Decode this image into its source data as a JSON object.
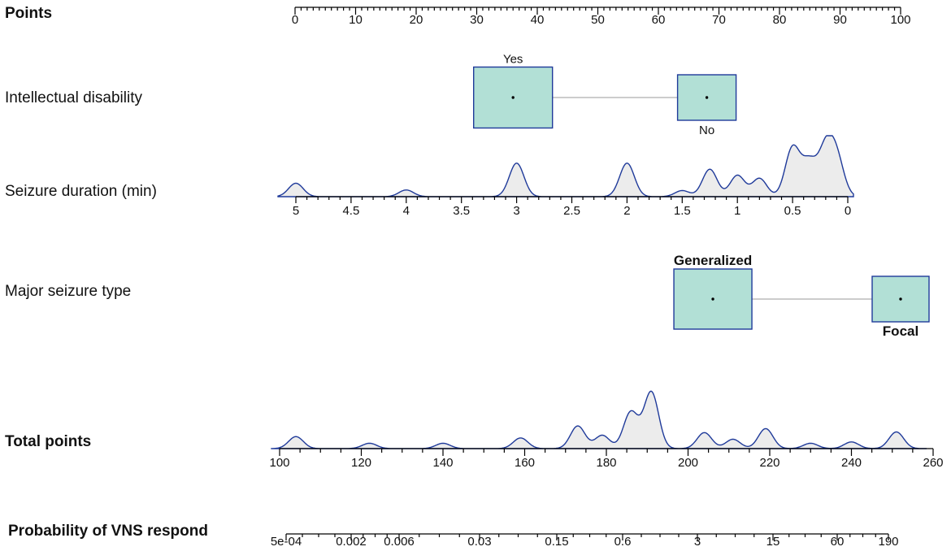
{
  "chart_data": {
    "type": "nomogram",
    "rows": {
      "points": {
        "label": "Points",
        "ticks": [
          0,
          10,
          20,
          30,
          40,
          50,
          60,
          70,
          80,
          90,
          100
        ]
      },
      "intellectual_disability": {
        "label": "Intellectual disability",
        "categories": [
          {
            "name": "Yes",
            "points": 36
          },
          {
            "name": "No",
            "points": 68
          }
        ]
      },
      "seizure_duration": {
        "label": "Seizure duration (min)",
        "ticks": [
          "5",
          "4.5",
          "4",
          "3.5",
          "3",
          "2.5",
          "2",
          "1.5",
          "1",
          "0.5",
          "0"
        ],
        "range": [
          5,
          0
        ]
      },
      "major_seizure_type": {
        "label": "Major seizure type",
        "categories": [
          {
            "name": "Generalized",
            "points": 69
          },
          {
            "name": "Focal",
            "points": 100
          }
        ]
      },
      "total_points": {
        "label": "Total points",
        "ticks": [
          100,
          120,
          140,
          160,
          180,
          200,
          220,
          240,
          260
        ],
        "range": [
          100,
          260
        ]
      },
      "probability": {
        "label": "Probability of VNS respond",
        "ticks": [
          "5e-04",
          "0.002",
          "0.006",
          "0.03",
          "0.15",
          "0.6",
          "3",
          "15",
          "60",
          "190"
        ]
      }
    },
    "density_seizure_duration": [
      {
        "x": 5.0,
        "h": 0.22
      },
      {
        "x": 4.0,
        "h": 0.11
      },
      {
        "x": 3.0,
        "h": 0.55
      },
      {
        "x": 2.0,
        "h": 0.55
      },
      {
        "x": 1.5,
        "h": 0.1
      },
      {
        "x": 1.25,
        "h": 0.45
      },
      {
        "x": 1.0,
        "h": 0.35
      },
      {
        "x": 0.8,
        "h": 0.3
      },
      {
        "x": 0.5,
        "h": 0.8
      },
      {
        "x": 0.35,
        "h": 0.55
      },
      {
        "x": 0.2,
        "h": 0.75
      },
      {
        "x": 0.1,
        "h": 0.6
      }
    ],
    "density_total_points": [
      {
        "x": 104,
        "h": 0.18
      },
      {
        "x": 122,
        "h": 0.08
      },
      {
        "x": 140,
        "h": 0.08
      },
      {
        "x": 159,
        "h": 0.16
      },
      {
        "x": 173,
        "h": 0.34
      },
      {
        "x": 179,
        "h": 0.2
      },
      {
        "x": 186,
        "h": 0.55
      },
      {
        "x": 191,
        "h": 0.85
      },
      {
        "x": 204,
        "h": 0.24
      },
      {
        "x": 211,
        "h": 0.14
      },
      {
        "x": 219,
        "h": 0.3
      },
      {
        "x": 230,
        "h": 0.08
      },
      {
        "x": 240,
        "h": 0.1
      },
      {
        "x": 251,
        "h": 0.25
      }
    ]
  }
}
